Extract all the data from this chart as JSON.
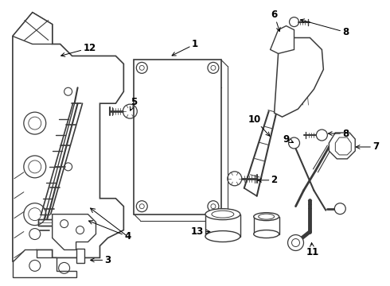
{
  "background_color": "#ffffff",
  "line_color": "#3a3a3a",
  "label_fontsize": 8.5,
  "fig_w": 4.9,
  "fig_h": 3.6,
  "dpi": 100
}
